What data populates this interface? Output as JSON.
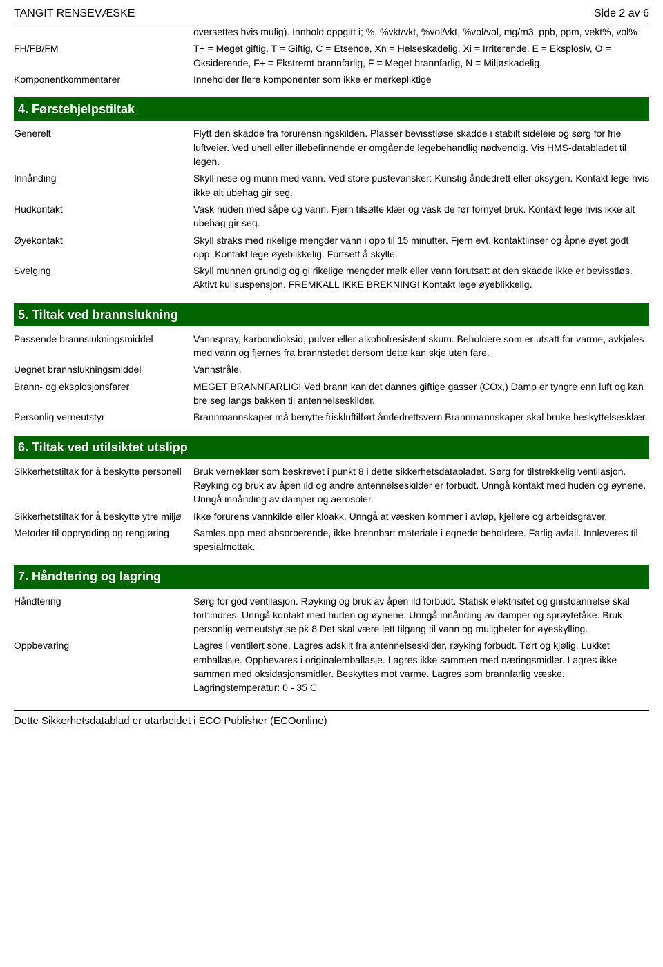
{
  "header": {
    "title": "TANGIT RENSEVÆSKE",
    "page_indicator": "Side 2 av 6"
  },
  "section_top": {
    "rows": [
      {
        "label": "",
        "value": "oversettes hvis mulig). Innhold oppgitt i; %, %vkt/vkt, %vol/vkt, %vol/vol, mg/m3, ppb, ppm, vekt%, vol%"
      },
      {
        "label": "FH/FB/FM",
        "value": "T+ = Meget giftig, T = Giftig, C = Etsende, Xn = Helseskadelig, Xi = Irriterende, E = Eksplosiv, O = Oksiderende, F+ = Ekstremt brannfarlig, F = Meget brannfarlig, N = Miljøskadelig."
      },
      {
        "label": "Komponentkommentarer",
        "value": "Inneholder flere komponenter som ikke er merkepliktige"
      }
    ]
  },
  "section4": {
    "heading": "4. Førstehjelpstiltak",
    "rows": [
      {
        "label": "Generelt",
        "value": "Flytt den skadde fra forurensningskilden. Plasser bevisstløse skadde i stabilt sideleie og sørg for frie luftveier. Ved uhell eller illebefinnende er omgående legebehandlig nødvendig. Vis HMS-databladet til legen."
      },
      {
        "label": "Innånding",
        "value": "Skyll nese og munn med vann. Ved store pustevansker: Kunstig åndedrett eller oksygen. Kontakt lege hvis ikke alt ubehag gir seg."
      },
      {
        "label": "Hudkontakt",
        "value": "Vask huden med såpe og vann. Fjern tilsølte klær og vask de før fornyet bruk. Kontakt lege hvis ikke alt ubehag gir seg."
      },
      {
        "label": "Øyekontakt",
        "value": "Skyll straks med rikelige mengder vann i opp til 15 minutter. Fjern evt. kontaktlinser og åpne øyet godt opp. Kontakt lege øyeblikkelig. Fortsett å skylle."
      },
      {
        "label": "Svelging",
        "value": "Skyll munnen grundig og gi rikelige mengder melk eller vann forutsatt at den skadde ikke er bevisstløs. Aktivt kullsuspensjon. FREMKALL IKKE BREKNING! Kontakt lege øyeblikkelig."
      }
    ]
  },
  "section5": {
    "heading": "5. Tiltak ved brannslukning",
    "rows": [
      {
        "label": "Passende brannslukningsmiddel",
        "value": "Vannspray, karbondioksid, pulver eller alkoholresistent skum. Beholdere som er utsatt for varme, avkjøles med vann og fjernes fra brannstedet dersom dette kan skje uten fare."
      },
      {
        "label": "Uegnet brannslukningsmiddel",
        "value": "Vannstråle."
      },
      {
        "label": "Brann- og eksplosjonsfarer",
        "value": "MEGET BRANNFARLIG! Ved brann kan det dannes giftige gasser (COx,) Damp er tyngre enn luft og kan bre seg langs bakken til antennelseskilder."
      },
      {
        "label": "Personlig verneutstyr",
        "value": "Brannmannskaper må benytte friskluftilført åndedrettsvern Brannmannskaper skal bruke beskyttelsesklær."
      }
    ]
  },
  "section6": {
    "heading": "6. Tiltak ved utilsiktet utslipp",
    "rows": [
      {
        "label": "Sikkerhetstiltak for å beskytte personell",
        "value": "Bruk verneklær som beskrevet i punkt 8 i dette sikkerhetsdatabladet. Sørg for tilstrekkelig ventilasjon. Røyking og bruk av åpen ild og andre antennelseskilder er forbudt. Unngå kontakt med huden og øynene. Unngå innånding av damper og aerosoler."
      },
      {
        "label": "Sikkerhetstiltak for å beskytte ytre miljø",
        "value": "Ikke forurens vannkilde eller kloakk. Unngå at væsken kommer i avløp, kjellere og arbeidsgraver."
      },
      {
        "label": "Metoder til opprydding og rengjøring",
        "value": "Samles opp med absorberende, ikke-brennbart materiale i egnede beholdere. Farlig avfall. Innleveres til spesialmottak."
      }
    ]
  },
  "section7": {
    "heading": "7. Håndtering og lagring",
    "rows": [
      {
        "label": "Håndtering",
        "value": "Sørg for god ventilasjon. Røyking og bruk av åpen ild forbudt. Statisk elektrisitet og gnistdannelse skal forhindres. Unngå kontakt med huden og øynene. Unngå innånding av damper og sprøytetåke. Bruk personlig verneutstyr se pk 8 Det skal være lett tilgang til vann og muligheter for øyeskylling."
      },
      {
        "label": "Oppbevaring",
        "value": "Lagres i ventilert sone. Lagres adskilt fra antennelseskilder, røyking forbudt. Tørt og kjølig. Lukket emballasje. Oppbevares i originalemballasje. Lagres ikke sammen med næringsmidler. Lagres ikke sammen med oksidasjonsmidler. Beskyttes mot varme. Lagres som brannfarlig væske. Lagringstemperatur: 0 - 35 C"
      }
    ]
  },
  "footer": {
    "text": "Dette Sikkerhetsdatablad er utarbeidet i ECO Publisher (ECOonline)"
  },
  "colors": {
    "heading_bg": "#006400",
    "heading_fg": "#ffffff",
    "text": "#000000",
    "rule": "#000000"
  }
}
